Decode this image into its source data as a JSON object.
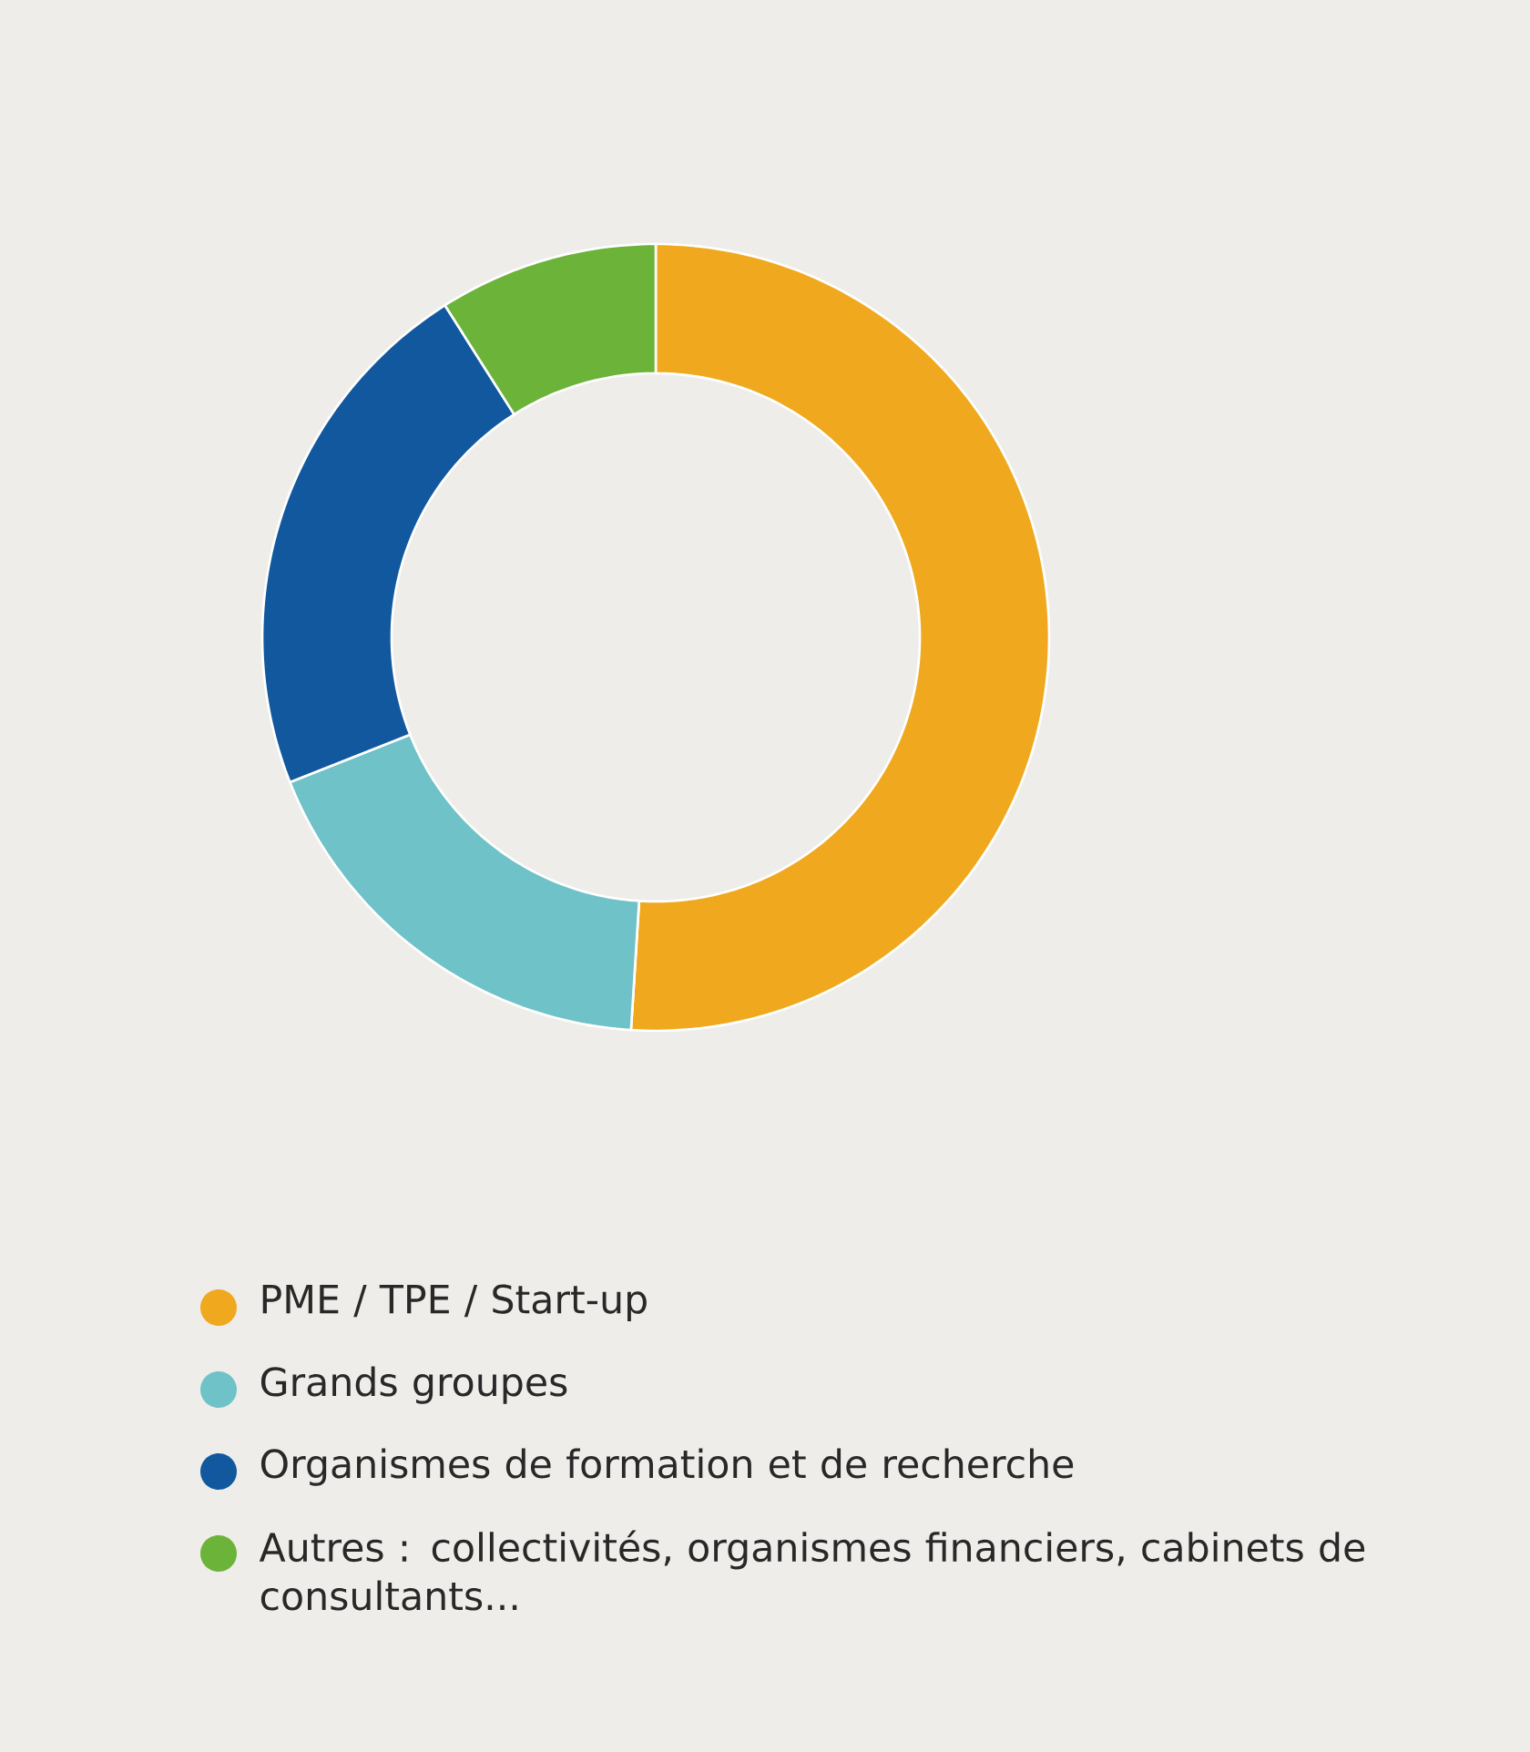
{
  "chart_data": {
    "type": "donut",
    "categories": [
      "PME / TPE / Start-up",
      "Grands groupes",
      "Organismes de formation et de recherche",
      "Autres : collectivités, organismes financiers, cabinets de consultants..."
    ],
    "values": [
      51,
      18,
      22,
      9
    ],
    "colors": [
      "#f0a91e",
      "#6fc2c8",
      "#12589e",
      "#6cb33a"
    ],
    "legend": "bottom"
  }
}
